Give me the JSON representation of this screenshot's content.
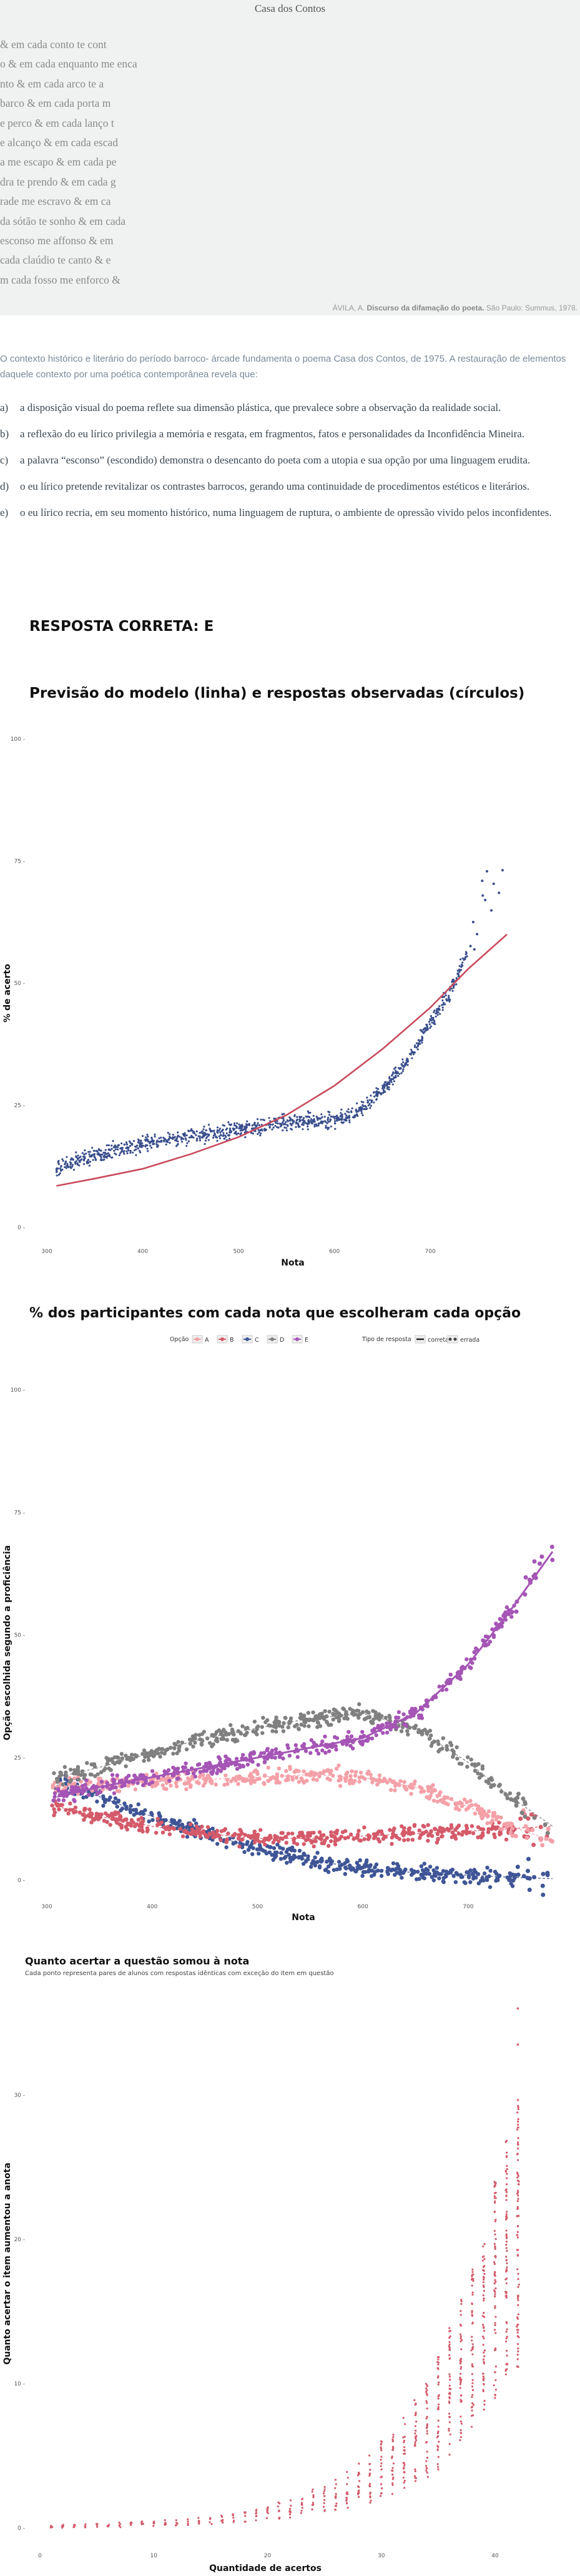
{
  "poem": {
    "title": "Casa dos Contos",
    "lines": [
      "& em cada conto te cont",
      "o & em cada enquanto me enca",
      "nto & em cada arco te a",
      "barco & em cada porta m",
      "e perco & em cada lanço t",
      "e alcanço & em cada escad",
      "a me escapo & em cada pe",
      "dra te prendo & em cada g",
      "rade me escravo & em ca",
      "da sótão te sonho & em cada",
      "esconso me affonso & em",
      "cada claúdio te canto & e",
      "m cada fosso me enforco &"
    ],
    "credit_prefix": "ÁVILA, A.",
    "credit_title": "Discurso da difamação do poeta.",
    "credit_suffix": "São Paulo: Summus, 1978."
  },
  "question": {
    "intro": "O contexto histórico e literário do período barroco- árcade fundamenta o poema Casa dos Contos, de 1975. A restauração de elementos daquele contexto por uma poética contemporânea revela que:",
    "options": [
      {
        "letter": "a)",
        "text": "a disposição visual do poema reflete sua dimensão plástica, que prevalece sobre a observação da realidade social."
      },
      {
        "letter": "b)",
        "text": "a reflexão do eu lírico privilegia a memória e resgata, em fragmentos, fatos e personalidades da Inconfidência Mineira."
      },
      {
        "letter": "c)",
        "text": "a palavra “esconso” (escondido) demonstra o desencanto do poeta com a utopia e sua opção por uma linguagem erudita."
      },
      {
        "letter": "d)",
        "text": "o eu lírico pretende revitalizar os contrastes barrocos, gerando uma continuidade de procedimentos estéticos e literários."
      },
      {
        "letter": "e)",
        "text": "o eu lírico recria, em seu momento histórico, numa linguagem de ruptura, o ambiente de opressão vivido pelos inconfidentes."
      }
    ],
    "answer": "RESPOSTA CORRETA: E"
  },
  "colors": {
    "model_line": "#c94a5c",
    "observed_points": "#3a4e8c",
    "A": "#f4a0a8",
    "B": "#d45a6a",
    "C": "#3f5596",
    "D": "#808080",
    "E": "#a555b5"
  },
  "chart_data": [
    {
      "type": "scatter",
      "title": "Previsão do modelo (linha) e respostas observadas (círculos)",
      "xlabel": "Nota",
      "ylabel": "% de acerto",
      "xlim": [
        300,
        780
      ],
      "ylim": [
        0,
        100
      ],
      "x_ticks": [
        "300",
        "400",
        "500",
        "600",
        "700"
      ],
      "y_ticks": [
        "0",
        "25",
        "50",
        "75",
        "100"
      ],
      "grid": false,
      "series": [
        {
          "role": "model",
          "mark": "line",
          "x": [
            310,
            350,
            400,
            450,
            500,
            550,
            600,
            650,
            700,
            740,
            780
          ],
          "y": [
            8.5,
            10,
            12,
            15,
            18.5,
            23,
            29,
            36.5,
            45,
            53,
            60
          ]
        },
        {
          "role": "observed",
          "mark": "points",
          "x": [
            310,
            350,
            400,
            450,
            500,
            550,
            600,
            620,
            650,
            680,
            700,
            720,
            740,
            760
          ],
          "y": [
            12,
            15,
            17,
            18.5,
            20,
            21.5,
            22,
            23,
            28,
            35,
            42,
            48,
            57,
            69
          ]
        }
      ]
    },
    {
      "type": "scatter",
      "title": "% dos participantes com cada nota que escolheram cada opção",
      "xlabel": "Nota",
      "ylabel": "Opção escolhida segundo a proficiência",
      "xlim": [
        300,
        780
      ],
      "ylim": [
        0,
        100
      ],
      "x_ticks": [
        "300",
        "400",
        "500",
        "600",
        "700"
      ],
      "y_ticks": [
        "0",
        "25",
        "50",
        "75",
        "100"
      ],
      "grid": false,
      "legend_position": "top",
      "legend_option_label": "Opção",
      "legend_type_label": "Tipo de resposta",
      "legend_types": [
        "correta",
        "errada"
      ],
      "x": [
        310,
        350,
        400,
        450,
        500,
        550,
        600,
        650,
        700,
        740,
        780
      ],
      "series": [
        {
          "name": "A",
          "values": [
            19,
            19.5,
            20,
            20.5,
            21,
            21.5,
            21,
            19,
            15,
            11,
            8
          ]
        },
        {
          "name": "B",
          "values": [
            15,
            13,
            11,
            9.5,
            8.5,
            8.5,
            9,
            9.5,
            10,
            10.5,
            11
          ]
        },
        {
          "name": "C",
          "values": [
            20,
            17,
            13,
            9.5,
            6.5,
            4,
            2.5,
            1.5,
            1,
            0.6,
            0.3
          ]
        },
        {
          "name": "D",
          "values": [
            21,
            23,
            26,
            29,
            31,
            33,
            34,
            31,
            24,
            17,
            11
          ]
        },
        {
          "name": "E",
          "values": [
            17,
            19,
            21,
            23,
            25,
            27,
            29,
            34,
            44,
            55,
            67
          ]
        }
      ]
    },
    {
      "type": "scatter",
      "title": "Quanto acertar a questão somou à nota",
      "subtitle": "Cada ponto representa pares de alunos com respostas idênticas com exceção do item em questão",
      "xlabel": "Quantidade de acertos",
      "ylabel": "Quanto acertar o item aumentou a anota",
      "xlim": [
        0,
        45
      ],
      "ylim": [
        -1,
        37
      ],
      "x_ticks": [
        "0",
        "10",
        "20",
        "30",
        "40"
      ],
      "y_ticks": [
        "0",
        "10",
        "20",
        "30"
      ],
      "grid": false,
      "series": [
        {
          "name": "",
          "x": [
            1,
            5,
            10,
            15,
            20,
            25,
            28,
            30,
            33,
            35,
            37,
            39,
            40,
            41,
            42
          ],
          "y_min": [
            0,
            0,
            0.1,
            0.2,
            0.5,
            1,
            1.5,
            2,
            3,
            4,
            6,
            8,
            9,
            10,
            11
          ],
          "y_max": [
            0.2,
            0.3,
            0.5,
            0.8,
            1.5,
            3,
            4.5,
            6,
            9,
            12,
            16,
            20,
            24,
            27,
            30
          ]
        }
      ]
    }
  ]
}
